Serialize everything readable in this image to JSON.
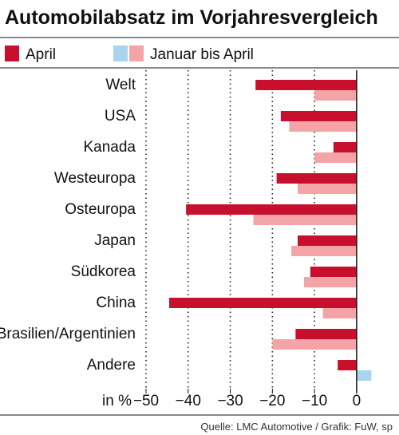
{
  "chart_data": {
    "type": "bar",
    "orientation": "horizontal",
    "title": "Automobilabsatz im Vorjahresvergleich",
    "categories": [
      "Welt",
      "USA",
      "Kanada",
      "Westeuropa",
      "Osteuropa",
      "Japan",
      "Südkorea",
      "China",
      "Brasilien/Argentinien",
      "Andere"
    ],
    "series": [
      {
        "name": "April",
        "color": "#c8102e",
        "values": [
          -24,
          -18,
          -5.5,
          -19,
          -40.5,
          -14,
          -11,
          -44.5,
          -14.5,
          -4.5
        ]
      },
      {
        "name": "Januar bis April",
        "color_negative": "#f4a3a6",
        "color_positive": "#a8d4ef",
        "values": [
          -10,
          -16,
          -10,
          -14,
          -24.5,
          -15.5,
          -12.5,
          -8,
          -20,
          3.5
        ]
      }
    ],
    "xlim": [
      -50,
      4
    ],
    "xticks": [
      -50,
      -40,
      -30,
      -20,
      -10,
      0
    ],
    "xtick_labels": [
      "−50",
      "−40",
      "−30",
      "−20",
      "−10",
      "0"
    ],
    "xlabel": "in %",
    "grid": "dotted vertical",
    "legend_position": "top-left",
    "source": "Quelle: LMC Automotive / Grafik: FuW, sp"
  }
}
